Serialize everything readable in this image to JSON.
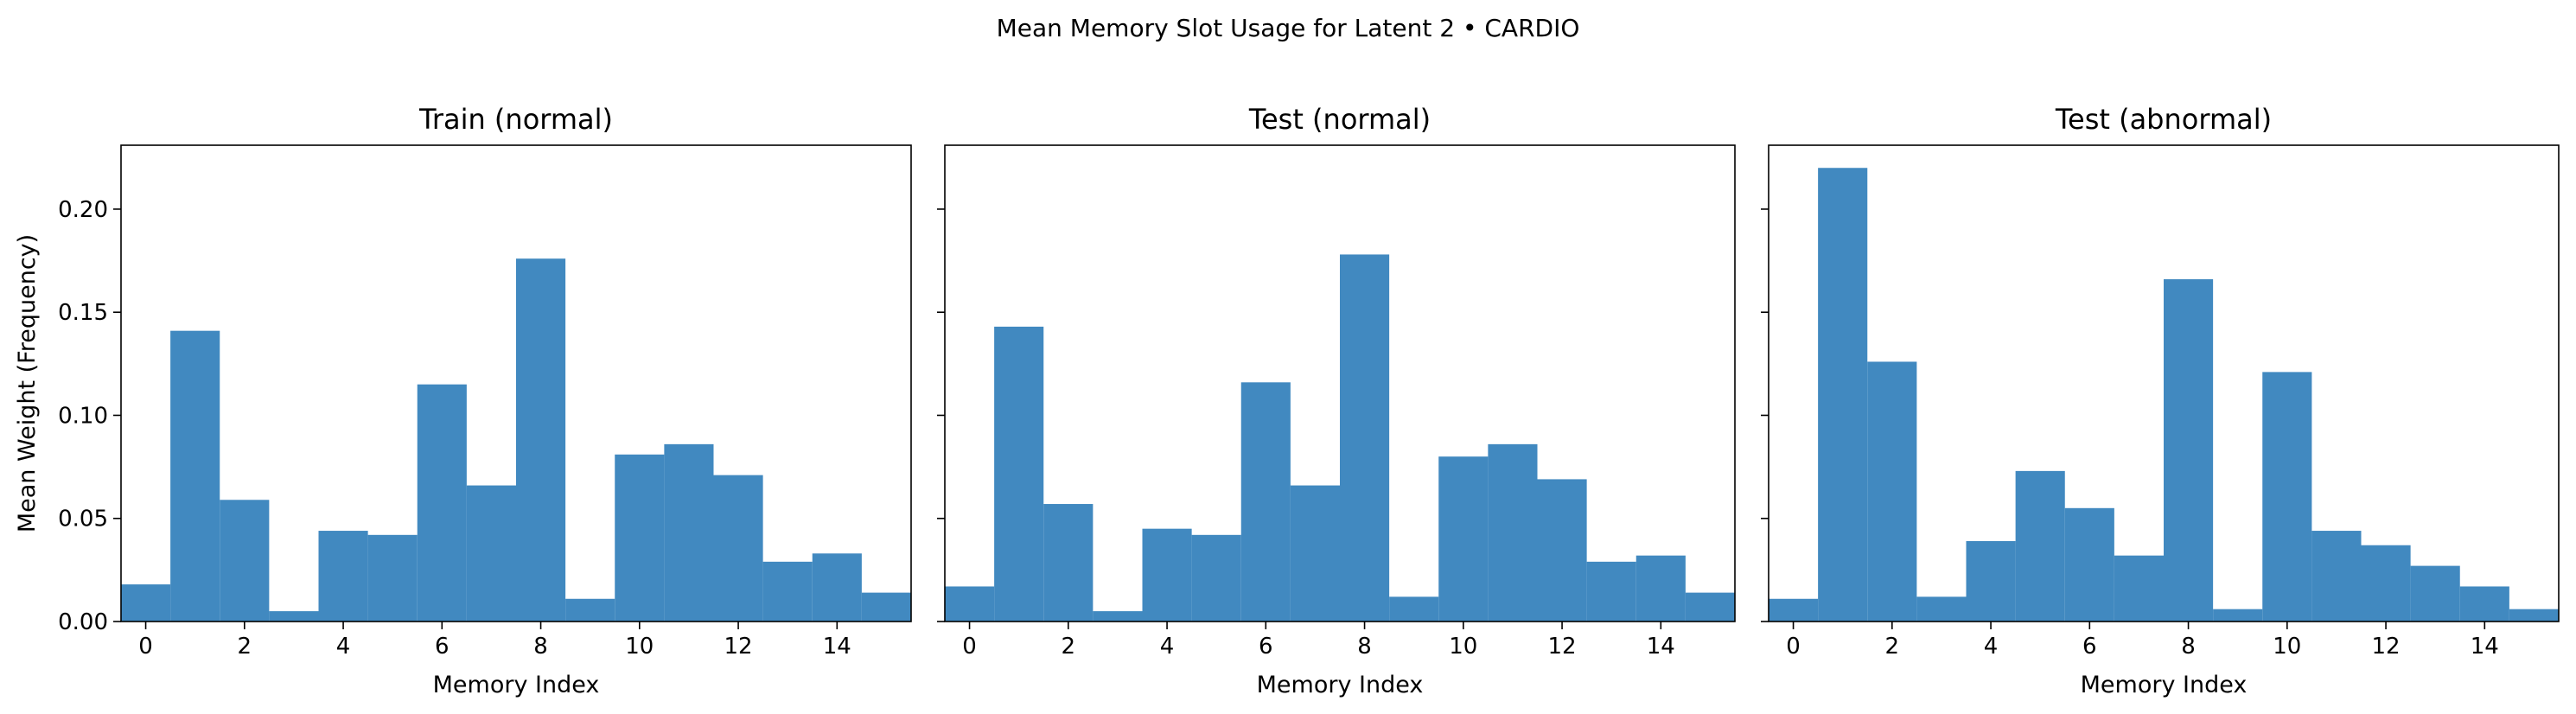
{
  "suptitle": "Mean Memory Slot Usage for Latent 2 • CARDIO",
  "bar_color": "#4189c0",
  "chart_data": [
    {
      "type": "bar",
      "title": "Train (normal)",
      "xlabel": "Memory Index",
      "ylabel": "Mean Weight (Frequency)",
      "xlim": [
        -0.5,
        15.5
      ],
      "ylim": [
        0,
        0.231
      ],
      "x_ticks": [
        0,
        2,
        4,
        6,
        8,
        10,
        12,
        14
      ],
      "y_ticks": [
        0.0,
        0.05,
        0.1,
        0.15,
        0.2
      ],
      "y_tick_labels": [
        "0.00",
        "0.05",
        "0.10",
        "0.15",
        "0.20"
      ],
      "grid": false,
      "categories": [
        0,
        1,
        2,
        3,
        4,
        5,
        6,
        7,
        8,
        9,
        10,
        11,
        12,
        13,
        14,
        15
      ],
      "values": [
        0.018,
        0.141,
        0.059,
        0.005,
        0.044,
        0.042,
        0.115,
        0.066,
        0.176,
        0.011,
        0.081,
        0.086,
        0.071,
        0.029,
        0.033,
        0.014
      ]
    },
    {
      "type": "bar",
      "title": "Test (normal)",
      "xlabel": "Memory Index",
      "ylabel": "",
      "xlim": [
        -0.5,
        15.5
      ],
      "ylim": [
        0,
        0.231
      ],
      "x_ticks": [
        0,
        2,
        4,
        6,
        8,
        10,
        12,
        14
      ],
      "y_ticks": [
        0.0,
        0.05,
        0.1,
        0.15,
        0.2
      ],
      "y_tick_labels": [
        "",
        "",
        "",
        "",
        ""
      ],
      "grid": false,
      "categories": [
        0,
        1,
        2,
        3,
        4,
        5,
        6,
        7,
        8,
        9,
        10,
        11,
        12,
        13,
        14,
        15
      ],
      "values": [
        0.017,
        0.143,
        0.057,
        0.005,
        0.045,
        0.042,
        0.116,
        0.066,
        0.178,
        0.012,
        0.08,
        0.086,
        0.069,
        0.029,
        0.032,
        0.014
      ]
    },
    {
      "type": "bar",
      "title": "Test (abnormal)",
      "xlabel": "Memory Index",
      "ylabel": "",
      "xlim": [
        -0.5,
        15.5
      ],
      "ylim": [
        0,
        0.231
      ],
      "x_ticks": [
        0,
        2,
        4,
        6,
        8,
        10,
        12,
        14
      ],
      "y_ticks": [
        0.0,
        0.05,
        0.1,
        0.15,
        0.2
      ],
      "y_tick_labels": [
        "",
        "",
        "",
        "",
        ""
      ],
      "grid": false,
      "categories": [
        0,
        1,
        2,
        3,
        4,
        5,
        6,
        7,
        8,
        9,
        10,
        11,
        12,
        13,
        14,
        15
      ],
      "values": [
        0.011,
        0.22,
        0.126,
        0.012,
        0.039,
        0.073,
        0.055,
        0.032,
        0.166,
        0.006,
        0.121,
        0.044,
        0.037,
        0.027,
        0.017,
        0.006
      ]
    }
  ]
}
